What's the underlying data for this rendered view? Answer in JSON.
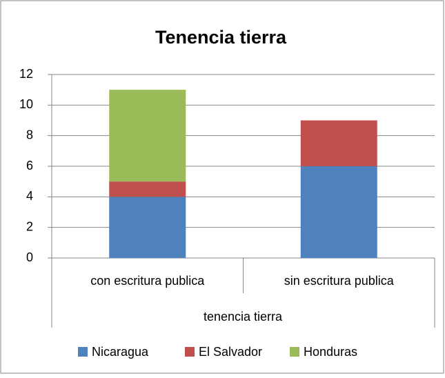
{
  "chart_data": {
    "type": "stacked_bar",
    "title": "Tenencia tierra",
    "categories": [
      "con escritura publica",
      "sin escritura publica"
    ],
    "category_group": "tenencia tierra",
    "series": [
      {
        "name": "Nicaragua",
        "color": "#4f81bd",
        "values": [
          4,
          6
        ]
      },
      {
        "name": "El Salvador",
        "color": "#c0504d",
        "values": [
          1,
          3
        ]
      },
      {
        "name": "Honduras",
        "color": "#9bbb59",
        "values": [
          6,
          0
        ]
      }
    ],
    "ylim": [
      0,
      12
    ],
    "yticks": [
      0,
      2,
      4,
      6,
      8,
      10,
      12
    ],
    "grid": true,
    "legend": "bottom"
  }
}
